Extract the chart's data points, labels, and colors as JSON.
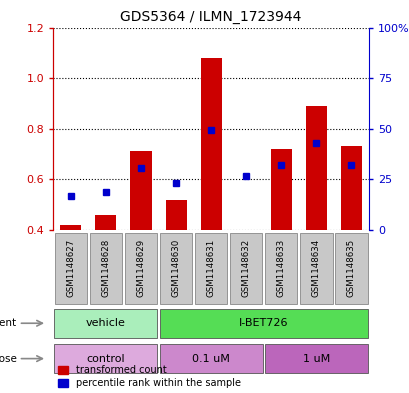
{
  "title": "GDS5364 / ILMN_1723944",
  "samples": [
    "GSM1148627",
    "GSM1148628",
    "GSM1148629",
    "GSM1148630",
    "GSM1148631",
    "GSM1148632",
    "GSM1148633",
    "GSM1148634",
    "GSM1148635"
  ],
  "red_values": [
    0.42,
    0.46,
    0.71,
    0.52,
    1.08,
    0.4,
    0.72,
    0.89,
    0.73
  ],
  "blue_values": [
    0.535,
    0.55,
    0.645,
    0.585,
    0.795,
    0.615,
    0.655,
    0.745,
    0.655
  ],
  "ylim_left": [
    0.4,
    1.2
  ],
  "ylim_right": [
    0,
    100
  ],
  "yticks_left": [
    0.4,
    0.6,
    0.8,
    1.0,
    1.2
  ],
  "yticks_right": [
    0,
    25,
    50,
    75,
    100
  ],
  "ytick_right_labels": [
    "0",
    "25",
    "50",
    "75",
    "100%"
  ],
  "bar_color": "#cc0000",
  "dot_color": "#0000cc",
  "bar_bottom": 0.4,
  "bar_width": 0.6,
  "agent_labels": [
    {
      "label": "vehicle",
      "start": 0,
      "end": 3,
      "color": "#aaeebb"
    },
    {
      "label": "I-BET726",
      "start": 3,
      "end": 9,
      "color": "#55dd55"
    }
  ],
  "dose_labels": [
    {
      "label": "control",
      "start": 0,
      "end": 3,
      "color": "#ddaadd"
    },
    {
      "label": "0.1 uM",
      "start": 3,
      "end": 6,
      "color": "#cc88cc"
    },
    {
      "label": "1 uM",
      "start": 6,
      "end": 9,
      "color": "#bb66bb"
    }
  ],
  "legend": [
    {
      "label": "transformed count",
      "color": "#cc0000"
    },
    {
      "label": "percentile rank within the sample",
      "color": "#0000cc"
    }
  ],
  "sample_bg": "#c8c8c8",
  "left_label_color": "#cc0000",
  "right_label_color": "#0000cc"
}
